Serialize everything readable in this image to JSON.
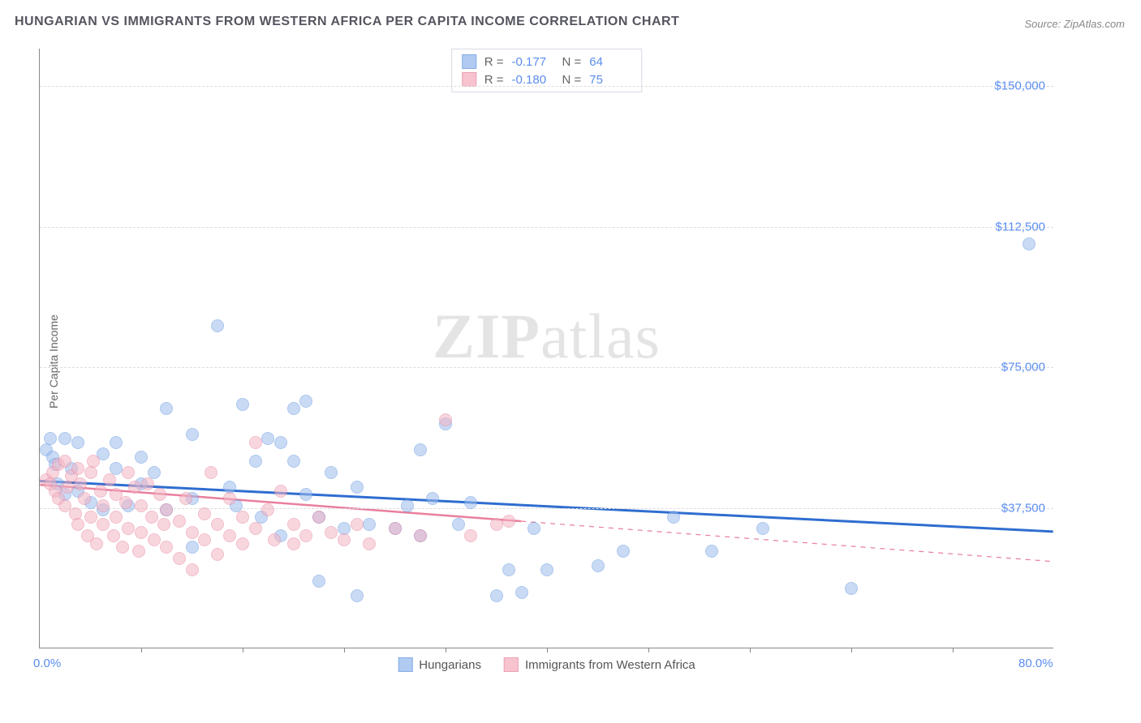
{
  "title": "HUNGARIAN VS IMMIGRANTS FROM WESTERN AFRICA PER CAPITA INCOME CORRELATION CHART",
  "source": "Source: ZipAtlas.com",
  "ylabel": "Per Capita Income",
  "watermark_a": "ZIP",
  "watermark_b": "atlas",
  "chart": {
    "type": "scatter",
    "xlim": [
      0,
      80
    ],
    "ylim": [
      0,
      160000
    ],
    "xticks": [
      {
        "pos": 0,
        "label": "0.0%"
      },
      {
        "pos": 80,
        "label": "80.0%"
      }
    ],
    "xminor": [
      8,
      16,
      24,
      32,
      40,
      48,
      56,
      64,
      72
    ],
    "yticks": [
      {
        "pos": 37500,
        "label": "$37,500"
      },
      {
        "pos": 75000,
        "label": "$75,000"
      },
      {
        "pos": 112500,
        "label": "$112,500"
      },
      {
        "pos": 150000,
        "label": "$150,000"
      }
    ],
    "series": [
      {
        "name": "Hungarians",
        "fill": "#9dbdee",
        "stroke": "#6a9be0",
        "fill_opacity": 0.55,
        "r_label": "R = ",
        "r_value": "-0.177",
        "n_label": "N = ",
        "n_value": "64",
        "trend": {
          "x1": 0,
          "y1": 44500,
          "x2": 80,
          "y2": 31000,
          "color": "#2f6dd0",
          "width": 3,
          "solid_until_x": 80
        },
        "points": [
          [
            0.5,
            53000
          ],
          [
            0.8,
            56000
          ],
          [
            1.0,
            51000
          ],
          [
            1.2,
            49000
          ],
          [
            1.4,
            44000
          ],
          [
            2.0,
            56000
          ],
          [
            2.0,
            41000
          ],
          [
            2.5,
            48000
          ],
          [
            3.0,
            55000
          ],
          [
            3.0,
            42000
          ],
          [
            4.0,
            39000
          ],
          [
            5.0,
            52000
          ],
          [
            5.0,
            37000
          ],
          [
            6.0,
            48000
          ],
          [
            6.0,
            55000
          ],
          [
            7.0,
            38000
          ],
          [
            8.0,
            51000
          ],
          [
            8.0,
            44000
          ],
          [
            9.0,
            47000
          ],
          [
            10.0,
            64000
          ],
          [
            10.0,
            37000
          ],
          [
            12.0,
            57000
          ],
          [
            12.0,
            40000
          ],
          [
            14.0,
            86000
          ],
          [
            15.0,
            43000
          ],
          [
            15.5,
            38000
          ],
          [
            16.0,
            65000
          ],
          [
            17.0,
            50000
          ],
          [
            17.5,
            35000
          ],
          [
            18.0,
            56000
          ],
          [
            19.0,
            55000
          ],
          [
            20.0,
            64000
          ],
          [
            20.0,
            50000
          ],
          [
            21.0,
            41000
          ],
          [
            21.0,
            66000
          ],
          [
            22.0,
            18000
          ],
          [
            22.0,
            35000
          ],
          [
            23.0,
            47000
          ],
          [
            24.0,
            32000
          ],
          [
            25.0,
            43000
          ],
          [
            25.0,
            14000
          ],
          [
            26.0,
            33000
          ],
          [
            28.0,
            32000
          ],
          [
            29.0,
            38000
          ],
          [
            30.0,
            53000
          ],
          [
            30.0,
            30000
          ],
          [
            31.0,
            40000
          ],
          [
            32.0,
            60000
          ],
          [
            33.0,
            33000
          ],
          [
            34.0,
            39000
          ],
          [
            36.0,
            14000
          ],
          [
            37.0,
            21000
          ],
          [
            38.0,
            15000
          ],
          [
            39.0,
            32000
          ],
          [
            40.0,
            21000
          ],
          [
            44.0,
            22000
          ],
          [
            46.0,
            26000
          ],
          [
            50.0,
            35000
          ],
          [
            53.0,
            26000
          ],
          [
            57.0,
            32000
          ],
          [
            64.0,
            16000
          ],
          [
            78.0,
            108000
          ],
          [
            12.0,
            27000
          ],
          [
            19.0,
            30000
          ]
        ]
      },
      {
        "name": "Immigrants from Western Africa",
        "fill": "#f4b5c4",
        "stroke": "#e88aa2",
        "fill_opacity": 0.55,
        "r_label": "R = ",
        "r_value": "-0.180",
        "n_label": "N = ",
        "n_value": "75",
        "trend": {
          "x1": 0,
          "y1": 43500,
          "x2": 80,
          "y2": 23000,
          "color": "#e97f9e",
          "width": 2.5,
          "solid_until_x": 38
        },
        "points": [
          [
            0.5,
            45000
          ],
          [
            0.8,
            44000
          ],
          [
            1.0,
            47000
          ],
          [
            1.2,
            42000
          ],
          [
            1.5,
            49000
          ],
          [
            1.5,
            40000
          ],
          [
            2.0,
            50000
          ],
          [
            2.0,
            38000
          ],
          [
            2.2,
            43000
          ],
          [
            2.5,
            46000
          ],
          [
            2.8,
            36000
          ],
          [
            3.0,
            48000
          ],
          [
            3.0,
            33000
          ],
          [
            3.2,
            44000
          ],
          [
            3.5,
            40000
          ],
          [
            3.8,
            30000
          ],
          [
            4.0,
            47000
          ],
          [
            4.0,
            35000
          ],
          [
            4.2,
            50000
          ],
          [
            4.5,
            28000
          ],
          [
            4.8,
            42000
          ],
          [
            5.0,
            33000
          ],
          [
            5.0,
            38000
          ],
          [
            5.5,
            45000
          ],
          [
            5.8,
            30000
          ],
          [
            6.0,
            41000
          ],
          [
            6.0,
            35000
          ],
          [
            6.5,
            27000
          ],
          [
            6.8,
            39000
          ],
          [
            7.0,
            47000
          ],
          [
            7.0,
            32000
          ],
          [
            7.5,
            43000
          ],
          [
            7.8,
            26000
          ],
          [
            8.0,
            38000
          ],
          [
            8.0,
            31000
          ],
          [
            8.5,
            44000
          ],
          [
            8.8,
            35000
          ],
          [
            9.0,
            29000
          ],
          [
            9.5,
            41000
          ],
          [
            9.8,
            33000
          ],
          [
            10.0,
            27000
          ],
          [
            10.0,
            37000
          ],
          [
            11.0,
            34000
          ],
          [
            11.0,
            24000
          ],
          [
            11.5,
            40000
          ],
          [
            12.0,
            31000
          ],
          [
            12.0,
            21000
          ],
          [
            13.0,
            36000
          ],
          [
            13.0,
            29000
          ],
          [
            13.5,
            47000
          ],
          [
            14.0,
            33000
          ],
          [
            14.0,
            25000
          ],
          [
            15.0,
            40000
          ],
          [
            15.0,
            30000
          ],
          [
            16.0,
            35000
          ],
          [
            16.0,
            28000
          ],
          [
            17.0,
            55000
          ],
          [
            17.0,
            32000
          ],
          [
            18.0,
            37000
          ],
          [
            18.5,
            29000
          ],
          [
            19.0,
            42000
          ],
          [
            20.0,
            33000
          ],
          [
            20.0,
            28000
          ],
          [
            21.0,
            30000
          ],
          [
            22.0,
            35000
          ],
          [
            23.0,
            31000
          ],
          [
            24.0,
            29000
          ],
          [
            25.0,
            33000
          ],
          [
            26.0,
            28000
          ],
          [
            28.0,
            32000
          ],
          [
            30.0,
            30000
          ],
          [
            32.0,
            61000
          ],
          [
            34.0,
            30000
          ],
          [
            36.0,
            33000
          ],
          [
            37.0,
            34000
          ]
        ]
      }
    ]
  }
}
